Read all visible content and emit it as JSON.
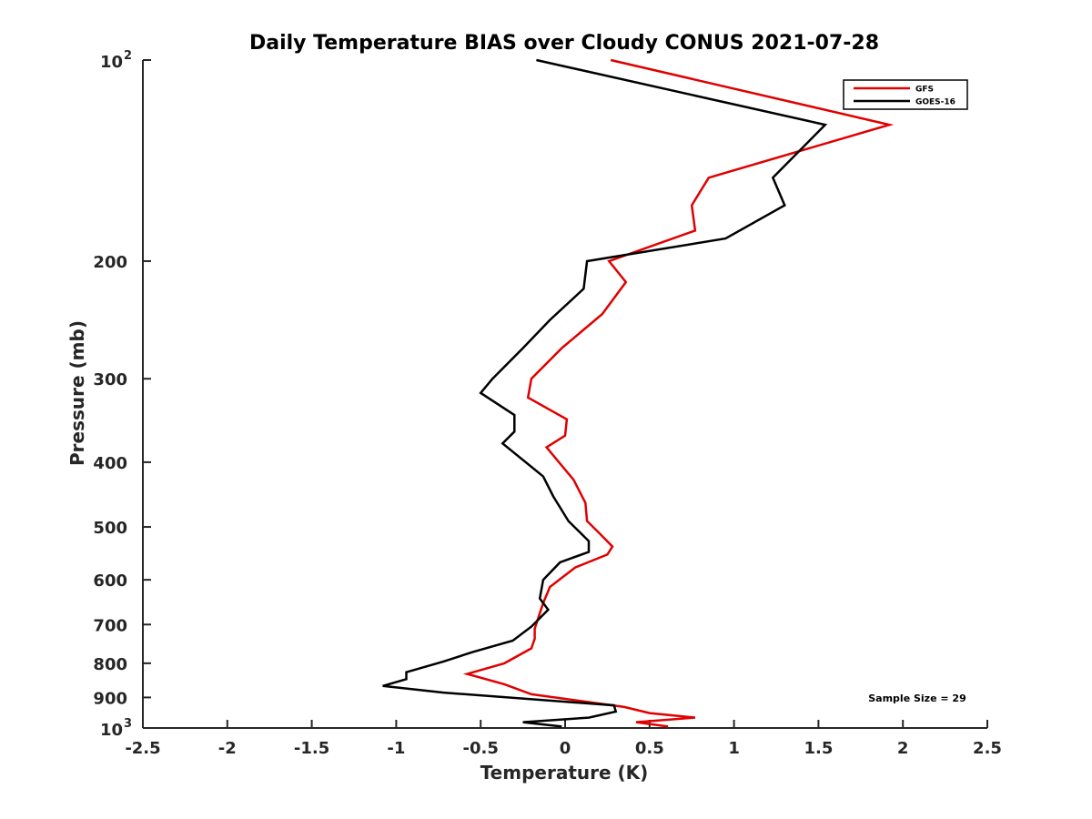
{
  "chart_data": {
    "type": "line",
    "title": "Daily Temperature BIAS over Cloudy CONUS 2021-07-28",
    "xlabel": "Temperature (K)",
    "ylabel": "Pressure (mb)",
    "xlim": [
      -2.5,
      2.5
    ],
    "ylim": [
      100,
      1000
    ],
    "y_scale": "log",
    "y_reversed": true,
    "x_ticks": [
      "-2.5",
      "-2",
      "-1.5",
      "-1",
      "-0.5",
      "0",
      "0.5",
      "1",
      "1.5",
      "2",
      "2.5"
    ],
    "y_ticks": [
      {
        "value": 100,
        "label": "10",
        "exp": "2"
      },
      {
        "value": 200,
        "label": "200"
      },
      {
        "value": 300,
        "label": "300"
      },
      {
        "value": 400,
        "label": "400"
      },
      {
        "value": 500,
        "label": "500"
      },
      {
        "value": 600,
        "label": "600"
      },
      {
        "value": 700,
        "label": "700"
      },
      {
        "value": 800,
        "label": "800"
      },
      {
        "value": 900,
        "label": "900"
      },
      {
        "value": 1000,
        "label": "10",
        "exp": "3"
      }
    ],
    "legend_position": "top-right",
    "series": [
      {
        "name": "GFS",
        "color": "#e00000",
        "points": [
          [
            0.27,
            100
          ],
          [
            1.92,
            125
          ],
          [
            0.85,
            150
          ],
          [
            0.75,
            165
          ],
          [
            0.77,
            180
          ],
          [
            0.26,
            200
          ],
          [
            0.36,
            215
          ],
          [
            0.22,
            240
          ],
          [
            -0.02,
            270
          ],
          [
            -0.2,
            300
          ],
          [
            -0.22,
            320
          ],
          [
            0.01,
            345
          ],
          [
            0.0,
            365
          ],
          [
            -0.11,
            380
          ],
          [
            0.05,
            425
          ],
          [
            0.12,
            460
          ],
          [
            0.13,
            490
          ],
          [
            0.2,
            510
          ],
          [
            0.28,
            535
          ],
          [
            0.25,
            550
          ],
          [
            0.06,
            575
          ],
          [
            -0.09,
            615
          ],
          [
            -0.13,
            650
          ],
          [
            -0.18,
            710
          ],
          [
            -0.18,
            735
          ],
          [
            -0.2,
            760
          ],
          [
            -0.36,
            800
          ],
          [
            -0.58,
            830
          ],
          [
            -0.36,
            860
          ],
          [
            -0.2,
            890
          ],
          [
            0.35,
            930
          ],
          [
            0.5,
            950
          ],
          [
            0.77,
            965
          ],
          [
            0.42,
            980
          ],
          [
            0.61,
            995
          ]
        ]
      },
      {
        "name": "GOES-16",
        "color": "#000000",
        "points": [
          [
            -0.17,
            100
          ],
          [
            1.54,
            125
          ],
          [
            1.23,
            150
          ],
          [
            1.3,
            165
          ],
          [
            0.95,
            185
          ],
          [
            0.13,
            200
          ],
          [
            0.11,
            220
          ],
          [
            -0.09,
            245
          ],
          [
            -0.25,
            270
          ],
          [
            -0.43,
            300
          ],
          [
            -0.5,
            315
          ],
          [
            -0.3,
            340
          ],
          [
            -0.3,
            360
          ],
          [
            -0.37,
            375
          ],
          [
            -0.13,
            420
          ],
          [
            -0.07,
            450
          ],
          [
            0.02,
            490
          ],
          [
            0.14,
            525
          ],
          [
            0.14,
            545
          ],
          [
            -0.03,
            565
          ],
          [
            -0.13,
            600
          ],
          [
            -0.15,
            640
          ],
          [
            -0.1,
            665
          ],
          [
            -0.2,
            705
          ],
          [
            -0.31,
            740
          ],
          [
            -0.55,
            770
          ],
          [
            -0.72,
            795
          ],
          [
            -0.94,
            825
          ],
          [
            -0.94,
            845
          ],
          [
            -1.08,
            865
          ],
          [
            -0.72,
            885
          ],
          [
            0.29,
            925
          ],
          [
            0.3,
            945
          ],
          [
            0.14,
            965
          ],
          [
            -0.25,
            980
          ],
          [
            -0.02,
            995
          ]
        ]
      }
    ],
    "annotation": "Sample Size = 29"
  }
}
